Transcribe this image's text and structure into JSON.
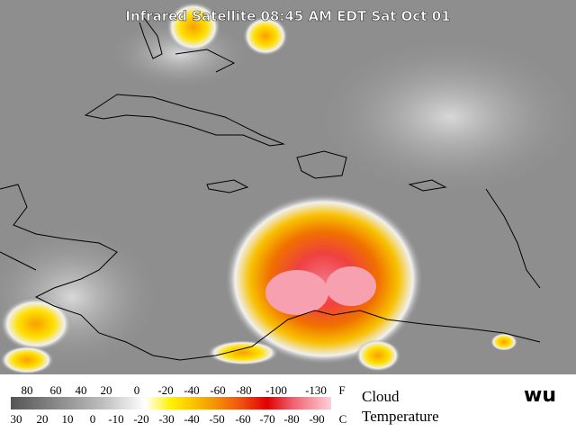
{
  "title": "Infrared Satellite 08:45 AM EDT Sat Oct 01",
  "legend": {
    "fahrenheit": [
      80,
      60,
      40,
      20,
      0,
      -20,
      -40,
      -60,
      -80,
      -100,
      -130
    ],
    "fahrenheit_unit": "F",
    "celsius": [
      30,
      20,
      10,
      0,
      -10,
      -20,
      -30,
      -40,
      -50,
      -60,
      -70,
      -80,
      -90
    ],
    "celsius_unit": "C",
    "caption_line1": "Cloud",
    "caption_line2": "Temperature"
  },
  "logo": "wu"
}
